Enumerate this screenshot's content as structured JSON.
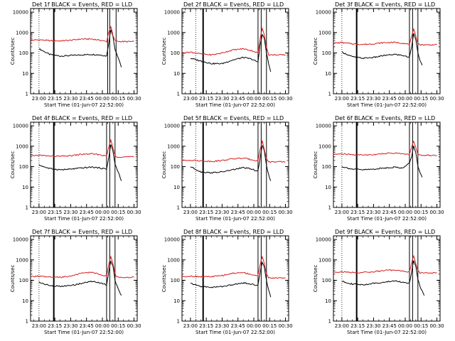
{
  "chart_data": [
    {
      "type": "line",
      "title": "Det 1f BLACK = Events, RED = LLD",
      "xlabel": "Start Time (01-Jun-07 22:52:00)",
      "ylabel": "Counts/sec",
      "x_ticks": [
        "23:00",
        "23:15",
        "23:30",
        "23:45",
        "00:00",
        "00:15",
        "00:30"
      ],
      "y_ticks": [
        "1",
        "10",
        "100",
        "1000",
        "10000"
      ],
      "y_scale": "log",
      "ylim": [
        1,
        15000
      ],
      "xlim": [
        "22:52",
        "00:33"
      ],
      "markers": {
        "dotted": [
          "23:00"
        ],
        "solid": [
          "23:14",
          "00:05",
          "00:07",
          "00:13"
        ]
      },
      "series": [
        {
          "name": "BLACK = Events",
          "color": "#000000",
          "x": [
            "23:00",
            "23:10",
            "23:20",
            "23:30",
            "23:40",
            "23:50",
            "23:58",
            "00:04",
            "00:06",
            "00:08",
            "00:10",
            "00:12",
            "00:14",
            "00:16",
            "00:18"
          ],
          "values": [
            160,
            85,
            70,
            75,
            80,
            85,
            80,
            70,
            300,
            1400,
            700,
            150,
            80,
            40,
            20
          ]
        },
        {
          "name": "RED = LLD",
          "color": "#d81e1e",
          "x": [
            "22:52",
            "23:00",
            "23:10",
            "23:20",
            "23:30",
            "23:40",
            "23:50",
            "23:58",
            "00:04",
            "00:06",
            "00:08",
            "00:10",
            "00:12",
            "00:14",
            "00:20",
            "00:30"
          ],
          "values": [
            420,
            440,
            400,
            390,
            420,
            480,
            480,
            420,
            360,
            1000,
            2000,
            700,
            400,
            370,
            360,
            360
          ]
        }
      ]
    },
    {
      "type": "line",
      "title": "Det 2f BLACK = Events, RED = LLD",
      "xlabel": "Start Time (01-Jun-07 22:52:00)",
      "ylabel": "Counts/sec",
      "x_ticks": [
        "23:00",
        "23:15",
        "23:30",
        "23:45",
        "00:00",
        "00:15",
        "00:30"
      ],
      "y_ticks": [
        "1",
        "10",
        "100",
        "1000",
        "10000"
      ],
      "y_scale": "log",
      "ylim": [
        1,
        15000
      ],
      "xlim": [
        "22:52",
        "00:33"
      ],
      "markers": {
        "dotted": [
          "23:05"
        ],
        "solid": [
          "23:12",
          "00:04",
          "00:07",
          "00:12"
        ]
      },
      "series": [
        {
          "name": "BLACK = Events",
          "color": "#000000",
          "x": [
            "23:00",
            "23:10",
            "23:20",
            "23:30",
            "23:40",
            "23:50",
            "23:58",
            "00:04",
            "00:06",
            "00:08",
            "00:10",
            "00:12",
            "00:14",
            "00:16"
          ],
          "values": [
            55,
            40,
            30,
            30,
            45,
            60,
            50,
            35,
            250,
            800,
            500,
            100,
            30,
            12
          ]
        },
        {
          "name": "RED = LLD",
          "color": "#d81e1e",
          "x": [
            "22:52",
            "23:00",
            "23:10",
            "23:20",
            "23:30",
            "23:40",
            "23:50",
            "23:58",
            "00:04",
            "00:06",
            "00:08",
            "00:10",
            "00:12",
            "00:14",
            "00:20",
            "00:30"
          ],
          "values": [
            100,
            110,
            90,
            80,
            100,
            140,
            160,
            130,
            100,
            500,
            1600,
            800,
            200,
            80,
            80,
            80
          ]
        }
      ]
    },
    {
      "type": "line",
      "title": "Det 3f BLACK = Events, RED = LLD",
      "xlabel": "Start Time (01-Jun-07 22:52:00)",
      "ylabel": "Counts/sec",
      "x_ticks": [
        "23:00",
        "23:15",
        "23:30",
        "23:45",
        "00:00",
        "00:15",
        "00:30"
      ],
      "y_ticks": [
        "1",
        "10",
        "100",
        "1000",
        "10000"
      ],
      "y_scale": "log",
      "ylim": [
        1,
        15000
      ],
      "xlim": [
        "22:52",
        "00:33"
      ],
      "markers": {
        "dotted": [
          "23:00"
        ],
        "solid": [
          "23:14",
          "00:04",
          "00:07",
          "00:12"
        ]
      },
      "series": [
        {
          "name": "BLACK = Events",
          "color": "#000000",
          "x": [
            "23:00",
            "23:10",
            "23:20",
            "23:30",
            "23:40",
            "23:50",
            "23:58",
            "00:04",
            "00:06",
            "00:08",
            "00:10",
            "00:12",
            "00:14",
            "00:16"
          ],
          "values": [
            110,
            65,
            55,
            60,
            75,
            85,
            75,
            60,
            200,
            900,
            500,
            100,
            40,
            25
          ]
        },
        {
          "name": "RED = LLD",
          "color": "#d81e1e",
          "x": [
            "22:52",
            "23:00",
            "23:10",
            "23:20",
            "23:30",
            "23:40",
            "23:50",
            "23:58",
            "00:04",
            "00:06",
            "00:08",
            "00:10",
            "00:12",
            "00:14",
            "00:20",
            "00:30"
          ],
          "values": [
            300,
            320,
            280,
            260,
            280,
            320,
            330,
            300,
            260,
            600,
            1400,
            700,
            300,
            250,
            250,
            250
          ]
        }
      ]
    },
    {
      "type": "line",
      "title": "Det 4f BLACK = Events, RED = LLD",
      "xlabel": "Start Time (01-Jun-07 22:52:00)",
      "ylabel": "Counts/sec",
      "x_ticks": [
        "23:00",
        "23:15",
        "23:30",
        "23:45",
        "00:00",
        "00:15",
        "00:30"
      ],
      "y_ticks": [
        "1",
        "10",
        "100",
        "1000",
        "10000"
      ],
      "y_scale": "log",
      "ylim": [
        1,
        15000
      ],
      "xlim": [
        "22:52",
        "00:33"
      ],
      "markers": {
        "dotted": [
          "23:00"
        ],
        "solid": [
          "23:14",
          "00:04",
          "00:07",
          "00:12"
        ]
      },
      "series": [
        {
          "name": "BLACK = Events",
          "color": "#000000",
          "x": [
            "23:00",
            "23:10",
            "23:20",
            "23:30",
            "23:40",
            "23:50",
            "23:58",
            "00:04",
            "00:06",
            "00:08",
            "00:10",
            "00:12",
            "00:14",
            "00:16",
            "00:18"
          ],
          "values": [
            120,
            80,
            70,
            75,
            85,
            95,
            85,
            75,
            280,
            1200,
            600,
            130,
            70,
            40,
            20
          ]
        },
        {
          "name": "RED = LLD",
          "color": "#d81e1e",
          "x": [
            "22:52",
            "23:00",
            "23:10",
            "23:20",
            "23:30",
            "23:40",
            "23:50",
            "23:58",
            "00:04",
            "00:06",
            "00:08",
            "00:10",
            "00:12",
            "00:14",
            "00:20",
            "00:30"
          ],
          "values": [
            340,
            360,
            330,
            320,
            340,
            400,
            420,
            380,
            320,
            900,
            2000,
            800,
            350,
            300,
            300,
            300
          ]
        }
      ]
    },
    {
      "type": "line",
      "title": "Det 5f BLACK = Events, RED = LLD",
      "xlabel": "Start Time (01-Jun-07 22:52:00)",
      "ylabel": "Counts/sec",
      "x_ticks": [
        "23:00",
        "23:15",
        "23:30",
        "23:45",
        "00:00",
        "00:15",
        "00:30"
      ],
      "y_ticks": [
        "1",
        "10",
        "100",
        "1000",
        "10000"
      ],
      "y_scale": "log",
      "ylim": [
        1,
        15000
      ],
      "xlim": [
        "22:52",
        "00:33"
      ],
      "markers": {
        "dotted": [
          "23:05"
        ],
        "solid": [
          "23:12",
          "00:04",
          "00:07",
          "00:12"
        ]
      },
      "series": [
        {
          "name": "BLACK = Events",
          "color": "#000000",
          "x": [
            "23:00",
            "23:10",
            "23:20",
            "23:30",
            "23:40",
            "23:50",
            "23:58",
            "00:04",
            "00:06",
            "00:08",
            "00:10",
            "00:12",
            "00:14",
            "00:16"
          ],
          "values": [
            100,
            55,
            50,
            55,
            70,
            90,
            75,
            60,
            250,
            1100,
            600,
            120,
            40,
            20
          ]
        },
        {
          "name": "RED = LLD",
          "color": "#d81e1e",
          "x": [
            "22:52",
            "23:00",
            "23:10",
            "23:20",
            "23:30",
            "23:40",
            "23:50",
            "23:58",
            "00:04",
            "00:06",
            "00:08",
            "00:10",
            "00:12",
            "00:14",
            "00:20",
            "00:30"
          ],
          "values": [
            200,
            210,
            190,
            180,
            200,
            240,
            260,
            220,
            190,
            700,
            1800,
            700,
            250,
            170,
            170,
            170
          ]
        }
      ]
    },
    {
      "type": "line",
      "title": "Det 6f BLACK = Events, RED = LLD",
      "xlabel": "Start Time (01-Jun-07 22:52:00)",
      "ylabel": "Counts/sec",
      "x_ticks": [
        "23:00",
        "23:15",
        "23:30",
        "23:45",
        "00:00",
        "00:15",
        "00:30"
      ],
      "y_ticks": [
        "1",
        "10",
        "100",
        "1000",
        "10000"
      ],
      "y_scale": "log",
      "ylim": [
        1,
        15000
      ],
      "xlim": [
        "22:52",
        "00:33"
      ],
      "markers": {
        "dotted": [
          "23:00"
        ],
        "solid": [
          "23:14",
          "00:04",
          "00:07",
          "00:12"
        ]
      },
      "series": [
        {
          "name": "BLACK = Events",
          "color": "#000000",
          "x": [
            "23:00",
            "23:10",
            "23:20",
            "23:30",
            "23:40",
            "23:50",
            "23:58",
            "00:04",
            "00:06",
            "00:08",
            "00:10",
            "00:12",
            "00:14",
            "00:16"
          ],
          "values": [
            100,
            75,
            70,
            75,
            85,
            95,
            85,
            150,
            300,
            1000,
            500,
            110,
            50,
            30
          ]
        },
        {
          "name": "RED = LLD",
          "color": "#d81e1e",
          "x": [
            "22:52",
            "23:00",
            "23:10",
            "23:20",
            "23:30",
            "23:40",
            "23:50",
            "23:58",
            "00:04",
            "00:06",
            "00:08",
            "00:10",
            "00:12",
            "00:14",
            "00:20",
            "00:30"
          ],
          "values": [
            400,
            420,
            380,
            370,
            390,
            440,
            460,
            420,
            380,
            900,
            1800,
            900,
            400,
            360,
            360,
            360
          ]
        }
      ]
    },
    {
      "type": "line",
      "title": "Det 7f BLACK = Events, RED = LLD",
      "xlabel": "Start Time (01-Jun-07 22:52:00)",
      "ylabel": "Counts/sec",
      "x_ticks": [
        "23:00",
        "23:15",
        "23:30",
        "23:45",
        "00:00",
        "00:15",
        "00:30"
      ],
      "y_ticks": [
        "1",
        "10",
        "100",
        "1000",
        "10000"
      ],
      "y_scale": "log",
      "ylim": [
        1,
        15000
      ],
      "xlim": [
        "22:52",
        "00:33"
      ],
      "markers": {
        "dotted": [
          "23:00"
        ],
        "solid": [
          "23:14",
          "00:04",
          "00:07",
          "00:12"
        ]
      },
      "series": [
        {
          "name": "BLACK = Events",
          "color": "#000000",
          "x": [
            "23:00",
            "23:10",
            "23:20",
            "23:30",
            "23:40",
            "23:50",
            "23:58",
            "00:04",
            "00:06",
            "00:08",
            "00:10",
            "00:12",
            "00:14",
            "00:16",
            "00:18"
          ],
          "values": [
            80,
            55,
            50,
            55,
            70,
            90,
            75,
            60,
            250,
            900,
            500,
            100,
            50,
            30,
            18
          ]
        },
        {
          "name": "RED = LLD",
          "color": "#d81e1e",
          "x": [
            "22:52",
            "23:00",
            "23:10",
            "23:20",
            "23:30",
            "23:40",
            "23:50",
            "23:58",
            "00:04",
            "00:06",
            "00:08",
            "00:10",
            "00:12",
            "00:14",
            "00:20",
            "00:30"
          ],
          "values": [
            150,
            160,
            140,
            140,
            160,
            220,
            250,
            190,
            160,
            600,
            1500,
            700,
            200,
            140,
            140,
            140
          ]
        }
      ]
    },
    {
      "type": "line",
      "title": "Det 8f BLACK = Events, RED = LLD",
      "xlabel": "Start Time (01-Jun-07 22:52:00)",
      "ylabel": "Counts/sec",
      "x_ticks": [
        "23:00",
        "23:15",
        "23:30",
        "23:45",
        "00:00",
        "00:15",
        "00:30"
      ],
      "y_ticks": [
        "1",
        "10",
        "100",
        "1000",
        "10000"
      ],
      "y_scale": "log",
      "ylim": [
        1,
        15000
      ],
      "xlim": [
        "22:52",
        "00:33"
      ],
      "markers": {
        "dotted": [
          "23:05"
        ],
        "solid": [
          "23:12",
          "00:04",
          "00:07",
          "00:12"
        ]
      },
      "series": [
        {
          "name": "BLACK = Events",
          "color": "#000000",
          "x": [
            "23:00",
            "23:10",
            "23:20",
            "23:30",
            "23:40",
            "23:50",
            "23:58",
            "00:04",
            "00:06",
            "00:08",
            "00:10",
            "00:12",
            "00:14",
            "00:16"
          ],
          "values": [
            70,
            50,
            45,
            50,
            60,
            75,
            65,
            55,
            250,
            800,
            450,
            100,
            35,
            15
          ]
        },
        {
          "name": "RED = LLD",
          "color": "#d81e1e",
          "x": [
            "22:52",
            "23:00",
            "23:10",
            "23:20",
            "23:30",
            "23:40",
            "23:50",
            "23:58",
            "00:04",
            "00:06",
            "00:08",
            "00:10",
            "00:12",
            "00:14",
            "00:20",
            "00:30"
          ],
          "values": [
            150,
            160,
            150,
            150,
            170,
            220,
            240,
            190,
            160,
            600,
            1500,
            700,
            200,
            130,
            130,
            130
          ]
        }
      ]
    },
    {
      "type": "line",
      "title": "Det 9f BLACK = Events, RED = LLD",
      "xlabel": "Start Time (01-Jun-07 22:52:00)",
      "ylabel": "Counts/sec",
      "x_ticks": [
        "23:00",
        "23:15",
        "23:30",
        "23:45",
        "00:00",
        "00:15",
        "00:30"
      ],
      "y_ticks": [
        "1",
        "10",
        "100",
        "1000",
        "10000"
      ],
      "y_scale": "log",
      "ylim": [
        1,
        15000
      ],
      "xlim": [
        "22:52",
        "00:33"
      ],
      "markers": {
        "dotted": [
          "23:00"
        ],
        "solid": [
          "23:14",
          "00:04",
          "00:07",
          "00:12"
        ]
      },
      "series": [
        {
          "name": "BLACK = Events",
          "color": "#000000",
          "x": [
            "23:00",
            "23:10",
            "23:20",
            "23:30",
            "23:40",
            "23:50",
            "23:58",
            "00:04",
            "00:06",
            "00:08",
            "00:10",
            "00:12",
            "00:14",
            "00:16",
            "00:18"
          ],
          "values": [
            90,
            65,
            60,
            70,
            80,
            95,
            80,
            70,
            250,
            900,
            500,
            110,
            50,
            30,
            18
          ]
        },
        {
          "name": "RED = LLD",
          "color": "#d81e1e",
          "x": [
            "22:52",
            "23:00",
            "23:10",
            "23:20",
            "23:30",
            "23:40",
            "23:50",
            "23:58",
            "00:04",
            "00:06",
            "00:08",
            "00:10",
            "00:12",
            "00:14",
            "00:20",
            "00:30"
          ],
          "values": [
            250,
            260,
            240,
            240,
            260,
            300,
            320,
            280,
            250,
            700,
            1500,
            700,
            300,
            230,
            230,
            230
          ]
        }
      ]
    }
  ]
}
